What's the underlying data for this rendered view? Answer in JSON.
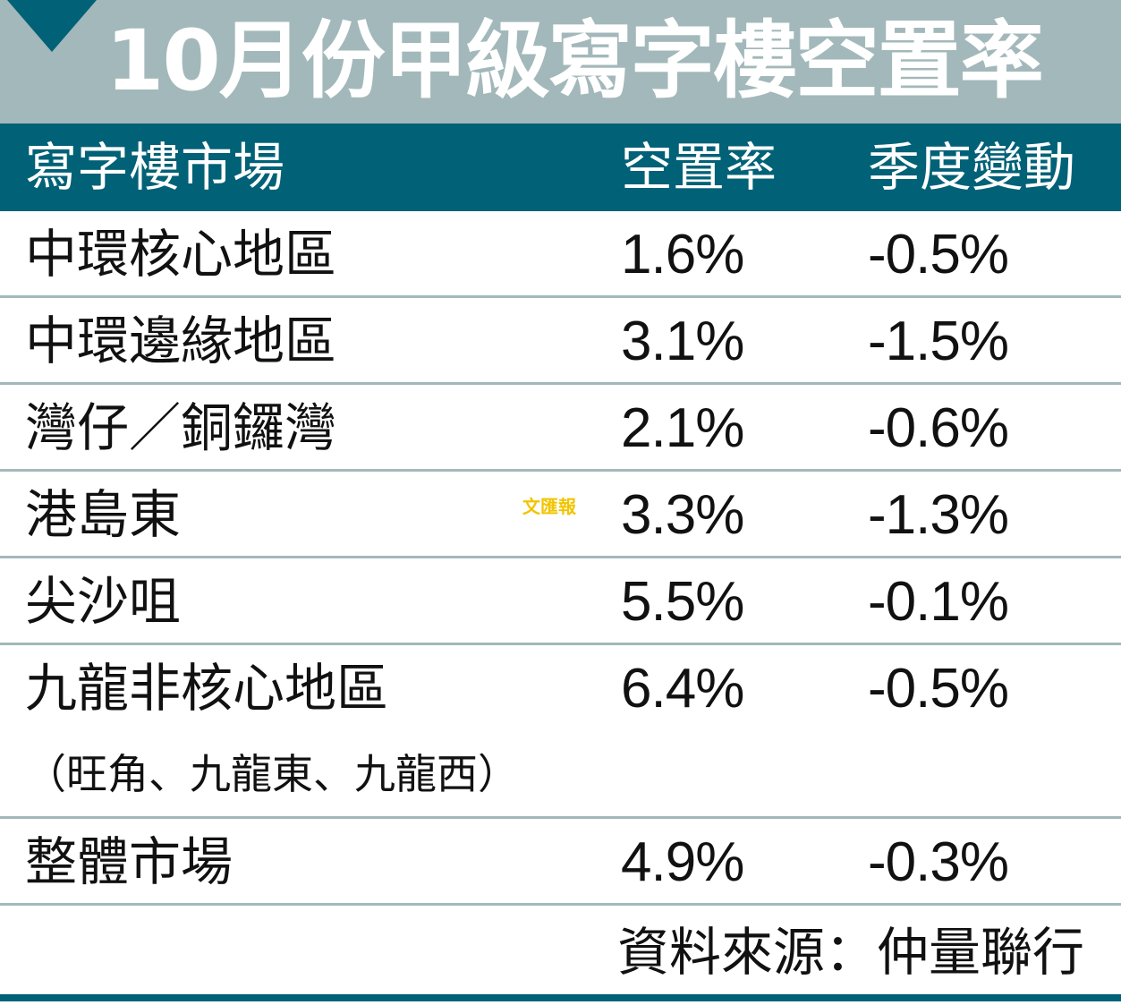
{
  "title": "10月份甲級寫字樓空置率",
  "chart_data": {
    "type": "table",
    "title": "10月份甲級寫字樓空置率",
    "columns": [
      "寫字樓市場",
      "空置率",
      "季度變動"
    ],
    "rows": [
      {
        "market": "中環核心地區",
        "note": "",
        "vacancy": "1.6%",
        "change": "-0.5%"
      },
      {
        "market": "中環邊緣地區",
        "note": "",
        "vacancy": "3.1%",
        "change": "-1.5%"
      },
      {
        "market": "灣仔／銅鑼灣",
        "note": "",
        "vacancy": "2.1%",
        "change": "-0.6%"
      },
      {
        "market": "港島東",
        "note": "",
        "vacancy": "3.3%",
        "change": "-1.3%"
      },
      {
        "market": "尖沙咀",
        "note": "",
        "vacancy": "5.5%",
        "change": "-0.1%"
      },
      {
        "market": "九龍非核心地區",
        "note": "（旺角、九龍東、九龍西）",
        "vacancy": "6.4%",
        "change": "-0.5%"
      },
      {
        "market": "整體市場",
        "note": "",
        "vacancy": "4.9%",
        "change": "-0.3%"
      }
    ],
    "source": "資料來源：仲量聯行"
  },
  "watermark": "文匯報",
  "colors": {
    "header_bg": "#006177",
    "title_bg": "#a3b8ba",
    "divider": "#a3b8ba",
    "watermark": "#f2c400"
  }
}
